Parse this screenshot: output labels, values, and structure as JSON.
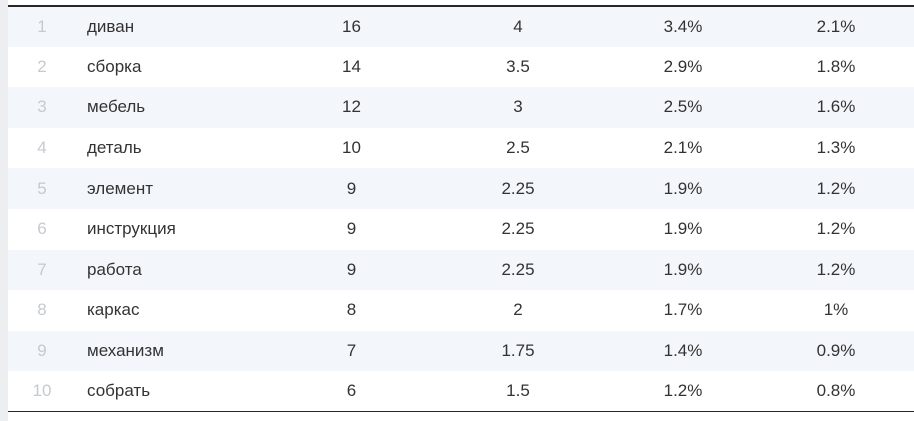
{
  "table": {
    "rows": [
      {
        "rank": "1",
        "word": "диван",
        "count": "16",
        "value": "4",
        "percent1": "3.4%",
        "percent2": "2.1%"
      },
      {
        "rank": "2",
        "word": "сборка",
        "count": "14",
        "value": "3.5",
        "percent1": "2.9%",
        "percent2": "1.8%"
      },
      {
        "rank": "3",
        "word": "мебель",
        "count": "12",
        "value": "3",
        "percent1": "2.5%",
        "percent2": "1.6%"
      },
      {
        "rank": "4",
        "word": "деталь",
        "count": "10",
        "value": "2.5",
        "percent1": "2.1%",
        "percent2": "1.3%"
      },
      {
        "rank": "5",
        "word": "элемент",
        "count": "9",
        "value": "2.25",
        "percent1": "1.9%",
        "percent2": "1.2%"
      },
      {
        "rank": "6",
        "word": "инструкция",
        "count": "9",
        "value": "2.25",
        "percent1": "1.9%",
        "percent2": "1.2%"
      },
      {
        "rank": "7",
        "word": "работа",
        "count": "9",
        "value": "2.25",
        "percent1": "1.9%",
        "percent2": "1.2%"
      },
      {
        "rank": "8",
        "word": "каркас",
        "count": "8",
        "value": "2",
        "percent1": "1.7%",
        "percent2": "1%"
      },
      {
        "rank": "9",
        "word": "механизм",
        "count": "7",
        "value": "1.75",
        "percent1": "1.4%",
        "percent2": "0.9%"
      },
      {
        "rank": "10",
        "word": "собрать",
        "count": "6",
        "value": "1.5",
        "percent1": "1.2%",
        "percent2": "0.8%"
      }
    ]
  },
  "colors": {
    "row-stripe": "#f3f6fa",
    "row-white": "#ffffff",
    "border-dark": "#26262b",
    "rank-text": "#c6cad0",
    "cell-text": "#333333",
    "page-strip": "#eceef0"
  }
}
